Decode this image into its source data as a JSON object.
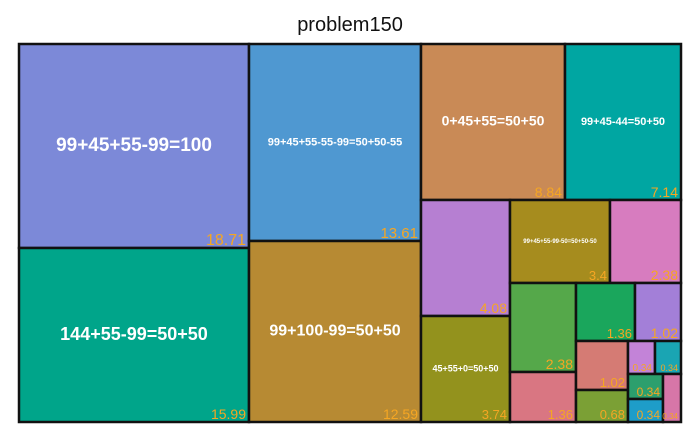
{
  "chart_data": {
    "type": "treemap",
    "title": "problem150",
    "nodes": [
      {
        "label": "99+45+55-99=100",
        "value": 18.71,
        "color": "#7c89d8"
      },
      {
        "label": "144+55-99=50+50",
        "value": 15.99,
        "color": "#00a58a"
      },
      {
        "label": "99+45+55-55-99=50+50-55",
        "value": 13.61,
        "color": "#4f98d1"
      },
      {
        "label": "99+100-99=50+50",
        "value": 12.59,
        "color": "#b78a33"
      },
      {
        "label": "0+45+55=50+50",
        "value": 8.84,
        "color": "#c98a56"
      },
      {
        "label": "99+45-44=50+50",
        "value": 7.14,
        "color": "#00a6a2"
      },
      {
        "label": "",
        "value": 4.08,
        "color": "#b67fd2"
      },
      {
        "label": "45+55+0=50+50",
        "value": 3.74,
        "color": "#93921d"
      },
      {
        "label": "99+45+55-99-50=50+50-50",
        "value": 3.4,
        "color": "#a68c1e"
      },
      {
        "label": "",
        "value": 2.38,
        "color": "#d77cbf"
      },
      {
        "label": "",
        "value": 2.38,
        "color": "#55a84a"
      },
      {
        "label": "",
        "value": 1.36,
        "color": "#d97682"
      },
      {
        "label": "",
        "value": 1.36,
        "color": "#1aa65c"
      },
      {
        "label": "",
        "value": 1.02,
        "color": "#a37fd8"
      },
      {
        "label": "",
        "value": 1.02,
        "color": "#d57b74"
      },
      {
        "label": "",
        "value": 0.68,
        "color": "#7ba035"
      },
      {
        "label": "",
        "value": 0.34,
        "color": "#c383d8"
      },
      {
        "label": "",
        "value": 0.34,
        "color": "#1aa5b3"
      },
      {
        "label": "",
        "value": 0.34,
        "color": "#2c9f6d"
      },
      {
        "label": "",
        "value": 0.34,
        "color": "#1e9dc9"
      },
      {
        "label": "",
        "value": 0.34,
        "color": "#d776a8"
      }
    ]
  }
}
